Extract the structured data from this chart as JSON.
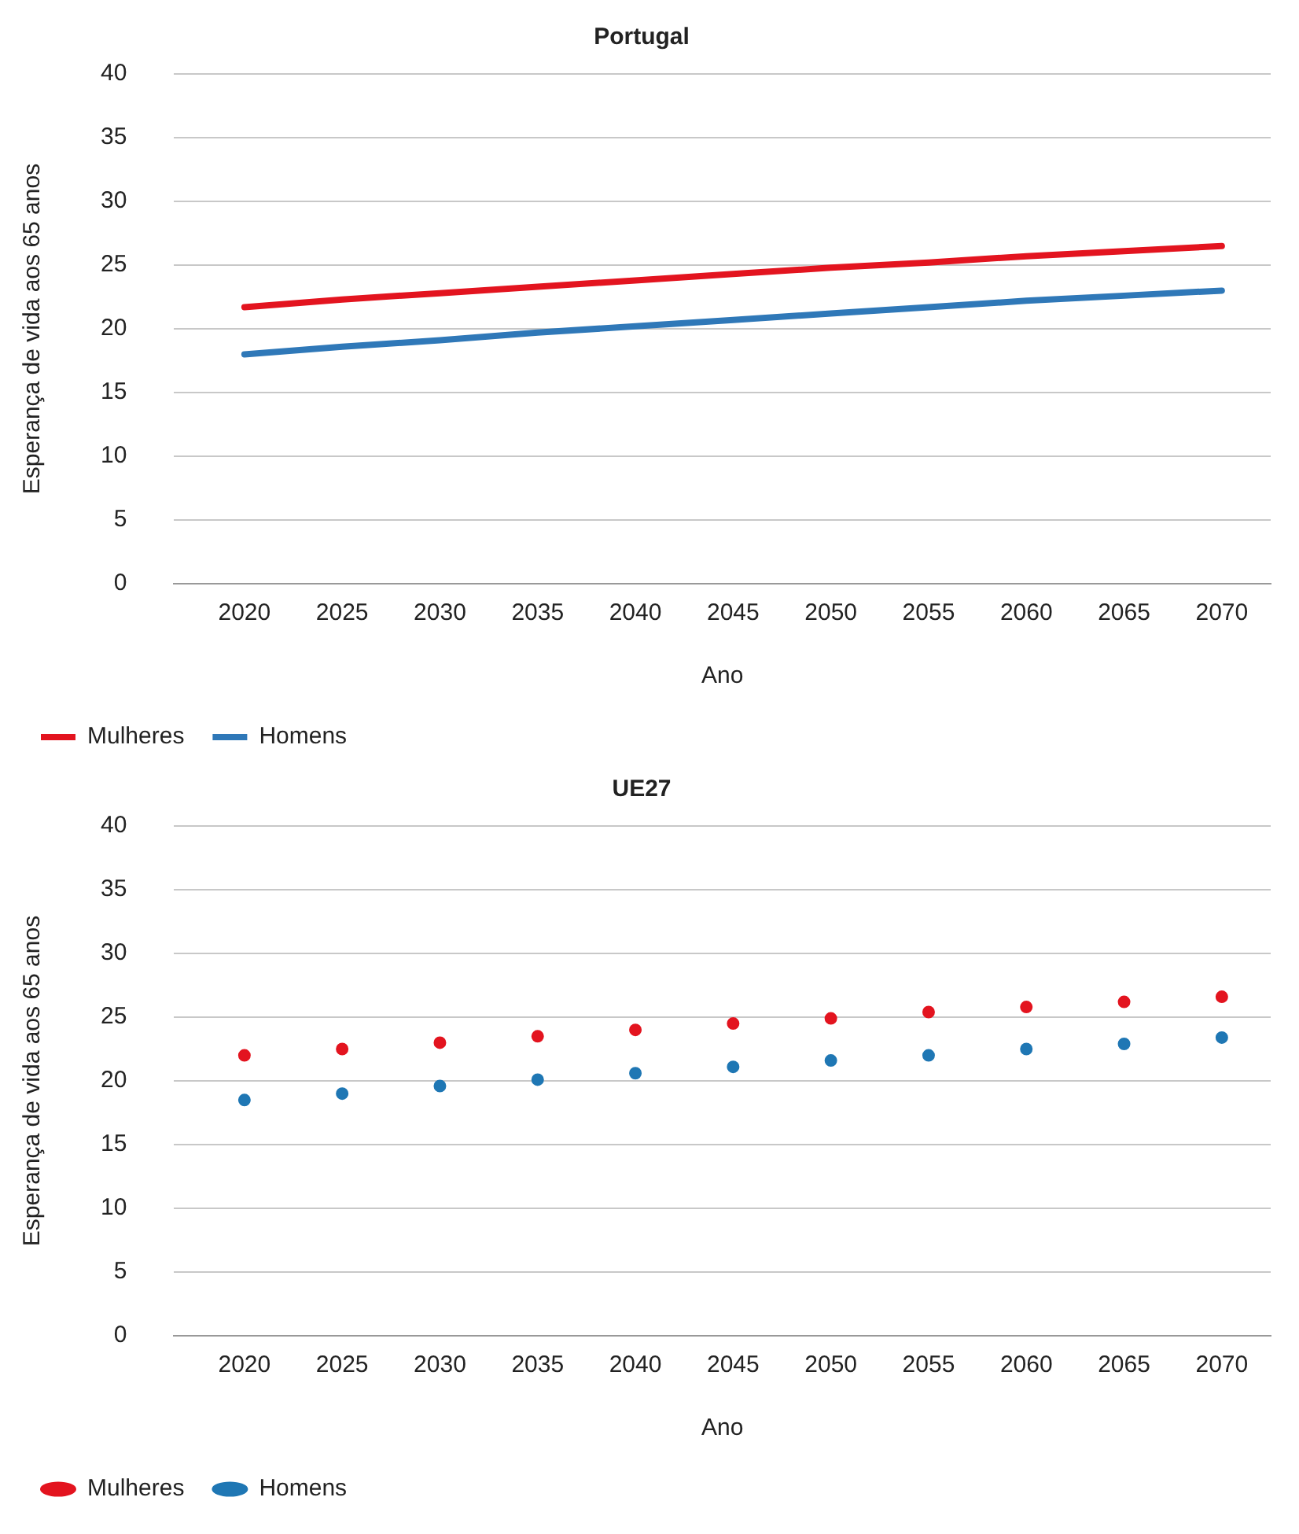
{
  "chart_data": [
    {
      "type": "line",
      "title": "Portugal",
      "xlabel": "Ano",
      "ylabel": "Esperança de vida aos 65 anos",
      "x": [
        2020,
        2025,
        2030,
        2035,
        2040,
        2045,
        2050,
        2055,
        2060,
        2065,
        2070
      ],
      "xlim": [
        2016.4,
        2072.5
      ],
      "xticks": [
        2020,
        2025,
        2030,
        2035,
        2040,
        2045,
        2050,
        2055,
        2060,
        2065,
        2070
      ],
      "ylim": [
        0,
        40
      ],
      "yticks": [
        0,
        5,
        10,
        15,
        20,
        25,
        30,
        35,
        40
      ],
      "grid": "y",
      "legend": "bottom left",
      "marker": "none",
      "line_style": "solid",
      "series": [
        {
          "name": "Mulheres",
          "color": "#e3141f",
          "values": [
            21.7,
            22.3,
            22.8,
            23.3,
            23.8,
            24.3,
            24.8,
            25.2,
            25.7,
            26.1,
            26.5
          ]
        },
        {
          "name": "Homens",
          "color": "#2f78b8",
          "values": [
            18.0,
            18.6,
            19.1,
            19.7,
            20.2,
            20.7,
            21.2,
            21.7,
            22.2,
            22.6,
            23.0
          ]
        }
      ]
    },
    {
      "type": "scatter",
      "title": "UE27",
      "xlabel": "Ano",
      "ylabel": "Esperança de vida aos 65 anos",
      "x": [
        2020,
        2025,
        2030,
        2035,
        2040,
        2045,
        2050,
        2055,
        2060,
        2065,
        2070
      ],
      "xlim": [
        2016.4,
        2072.5
      ],
      "xticks": [
        2020,
        2025,
        2030,
        2035,
        2040,
        2045,
        2050,
        2055,
        2060,
        2065,
        2070
      ],
      "ylim": [
        0,
        40
      ],
      "yticks": [
        0,
        5,
        10,
        15,
        20,
        25,
        30,
        35,
        40
      ],
      "grid": "y",
      "legend": "bottom left",
      "marker": "circle",
      "series": [
        {
          "name": "Mulheres",
          "color": "#e3141f",
          "values": [
            22.0,
            22.5,
            23.0,
            23.5,
            24.0,
            24.5,
            24.9,
            25.4,
            25.8,
            26.2,
            26.6
          ]
        },
        {
          "name": "Homens",
          "color": "#1f77b4",
          "values": [
            18.5,
            19.0,
            19.6,
            20.1,
            20.6,
            21.1,
            21.6,
            22.0,
            22.5,
            22.9,
            23.4
          ]
        }
      ]
    }
  ]
}
